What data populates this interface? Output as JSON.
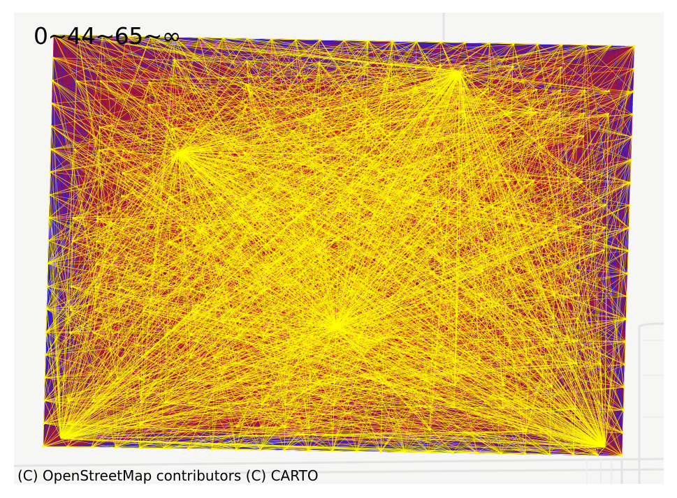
{
  "map": {
    "legend": "0~44~65~∞",
    "attribution": "(C) OpenStreetMap contributors (C) CARTO",
    "bin_colors": {
      "low": "#2a1fd8",
      "mid": "#e0121a",
      "high": "#ffff00"
    },
    "basemap": {
      "land": "#f6f6f5",
      "roads": "#e6e6e6"
    }
  }
}
